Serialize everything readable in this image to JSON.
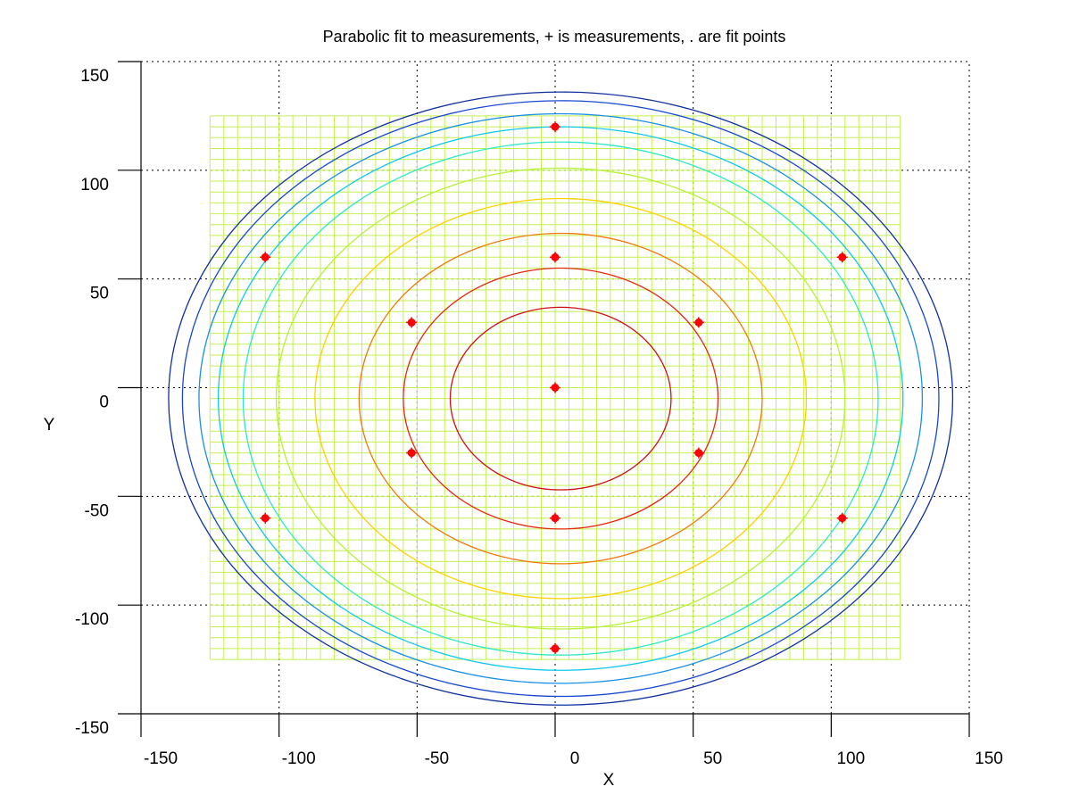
{
  "chart_data": {
    "type": "contour",
    "title": "Parabolic fit to measurements, + is measurements, . are fit points",
    "xlabel": "X",
    "ylabel": "Y",
    "xlim": [
      -150,
      150
    ],
    "ylim": [
      -150,
      150
    ],
    "xticks": [
      -150,
      -100,
      -50,
      0,
      50,
      100,
      150
    ],
    "yticks": [
      -150,
      -100,
      -50,
      0,
      50,
      100,
      150
    ],
    "xtick_labels": [
      "-150",
      "-100",
      "-50",
      "0",
      "50",
      "100",
      "150"
    ],
    "ytick_labels": [
      "-150",
      "-100",
      "-50",
      "0",
      "50",
      "100",
      "150"
    ],
    "grid": "dotted",
    "mesh": {
      "xrange": [
        -125,
        125
      ],
      "yrange": [
        -125,
        125
      ],
      "step": 5
    },
    "surface_center": [
      2,
      -5
    ],
    "contour_levels": [
      {
        "rx": 40,
        "ry": 42,
        "color": "#d01010"
      },
      {
        "rx": 57,
        "ry": 60,
        "color": "#e42810"
      },
      {
        "rx": 73,
        "ry": 76,
        "color": "#f07810"
      },
      {
        "rx": 89,
        "ry": 92,
        "color": "#ffd000"
      },
      {
        "rx": 103,
        "ry": 106,
        "color": "#b8f03c"
      },
      {
        "rx": 115,
        "ry": 118,
        "color": "#30e8c8"
      },
      {
        "rx": 124,
        "ry": 125,
        "color": "#10c8f0"
      },
      {
        "rx": 131,
        "ry": 131,
        "color": "#1890e8"
      },
      {
        "rx": 137,
        "ry": 137,
        "color": "#1848d0"
      },
      {
        "rx": 142,
        "ry": 141,
        "color": "#1030a0"
      }
    ],
    "measurement_points": [
      {
        "x": 0,
        "y": 120
      },
      {
        "x": -105,
        "y": 60
      },
      {
        "x": 104,
        "y": 60
      },
      {
        "x": 0,
        "y": 60
      },
      {
        "x": -52,
        "y": 30
      },
      {
        "x": 52,
        "y": 30
      },
      {
        "x": 0,
        "y": 0
      },
      {
        "x": -52,
        "y": -30
      },
      {
        "x": 52,
        "y": -30
      },
      {
        "x": -105,
        "y": -60
      },
      {
        "x": 0,
        "y": -60
      },
      {
        "x": 104,
        "y": -60
      },
      {
        "x": 0,
        "y": -120
      }
    ],
    "colors": {
      "mesh": "#c4f050",
      "points": "#ff0000",
      "axis": "#000000"
    }
  }
}
